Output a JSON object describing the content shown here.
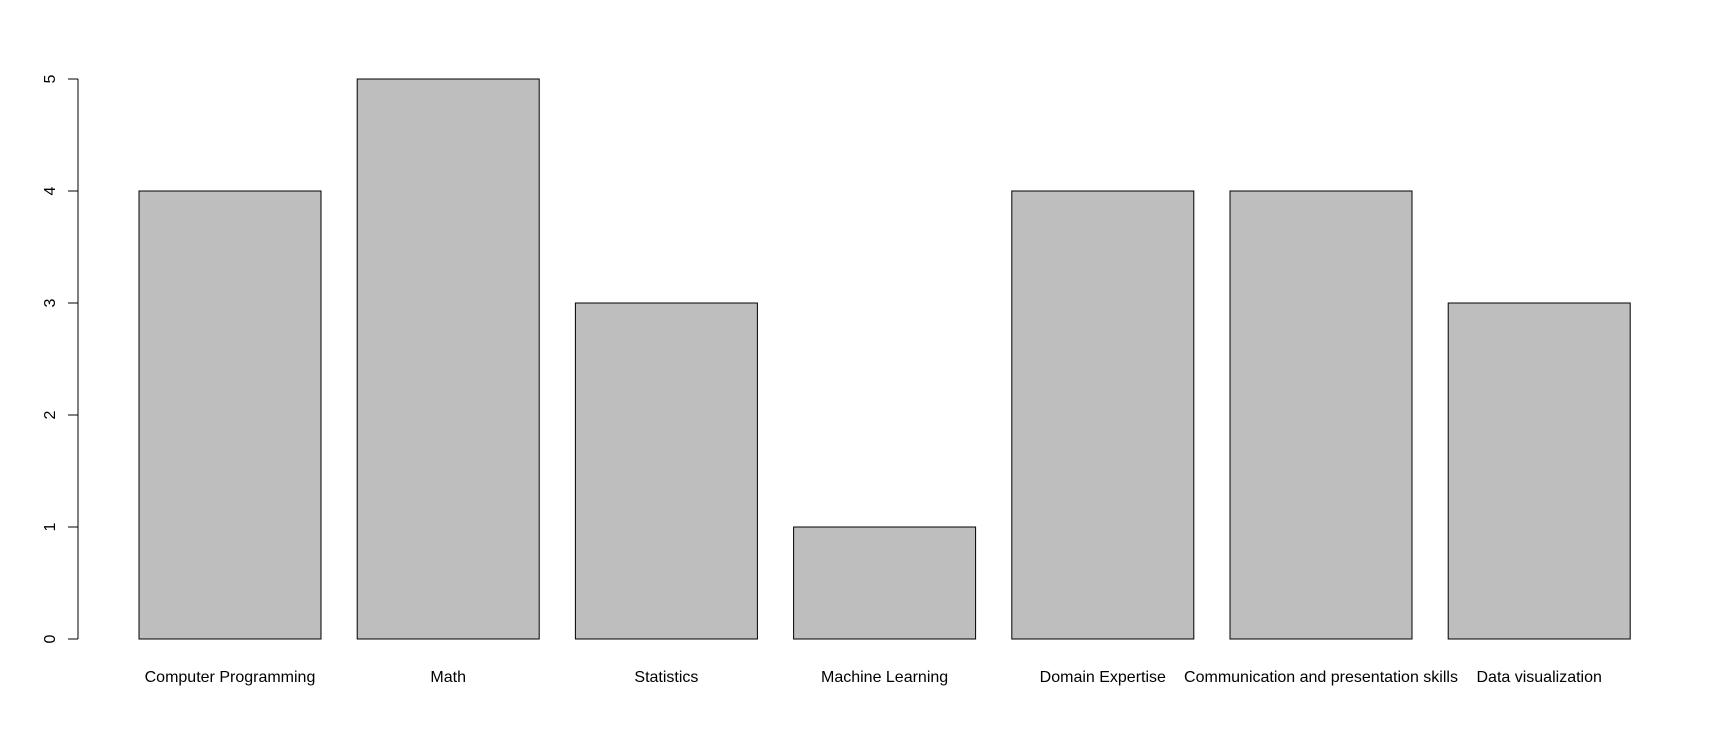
{
  "chart_data": {
    "type": "bar",
    "categories": [
      "Computer Programming",
      "Math",
      "Statistics",
      "Machine Learning",
      "Domain Expertise",
      "Communication and presentation skills",
      "Data visualization"
    ],
    "values": [
      4,
      5,
      3,
      1,
      4,
      4,
      3
    ],
    "yticks": [
      "0",
      "1",
      "2",
      "3",
      "4",
      "5"
    ],
    "ylim": [
      0,
      5
    ],
    "title": "",
    "xlabel": "",
    "ylabel": "",
    "grid": false,
    "legend": "none",
    "colors": {
      "bar_fill": "#bebebe",
      "bar_stroke": "#000000",
      "axis": "#000000",
      "background": "#ffffff"
    }
  }
}
